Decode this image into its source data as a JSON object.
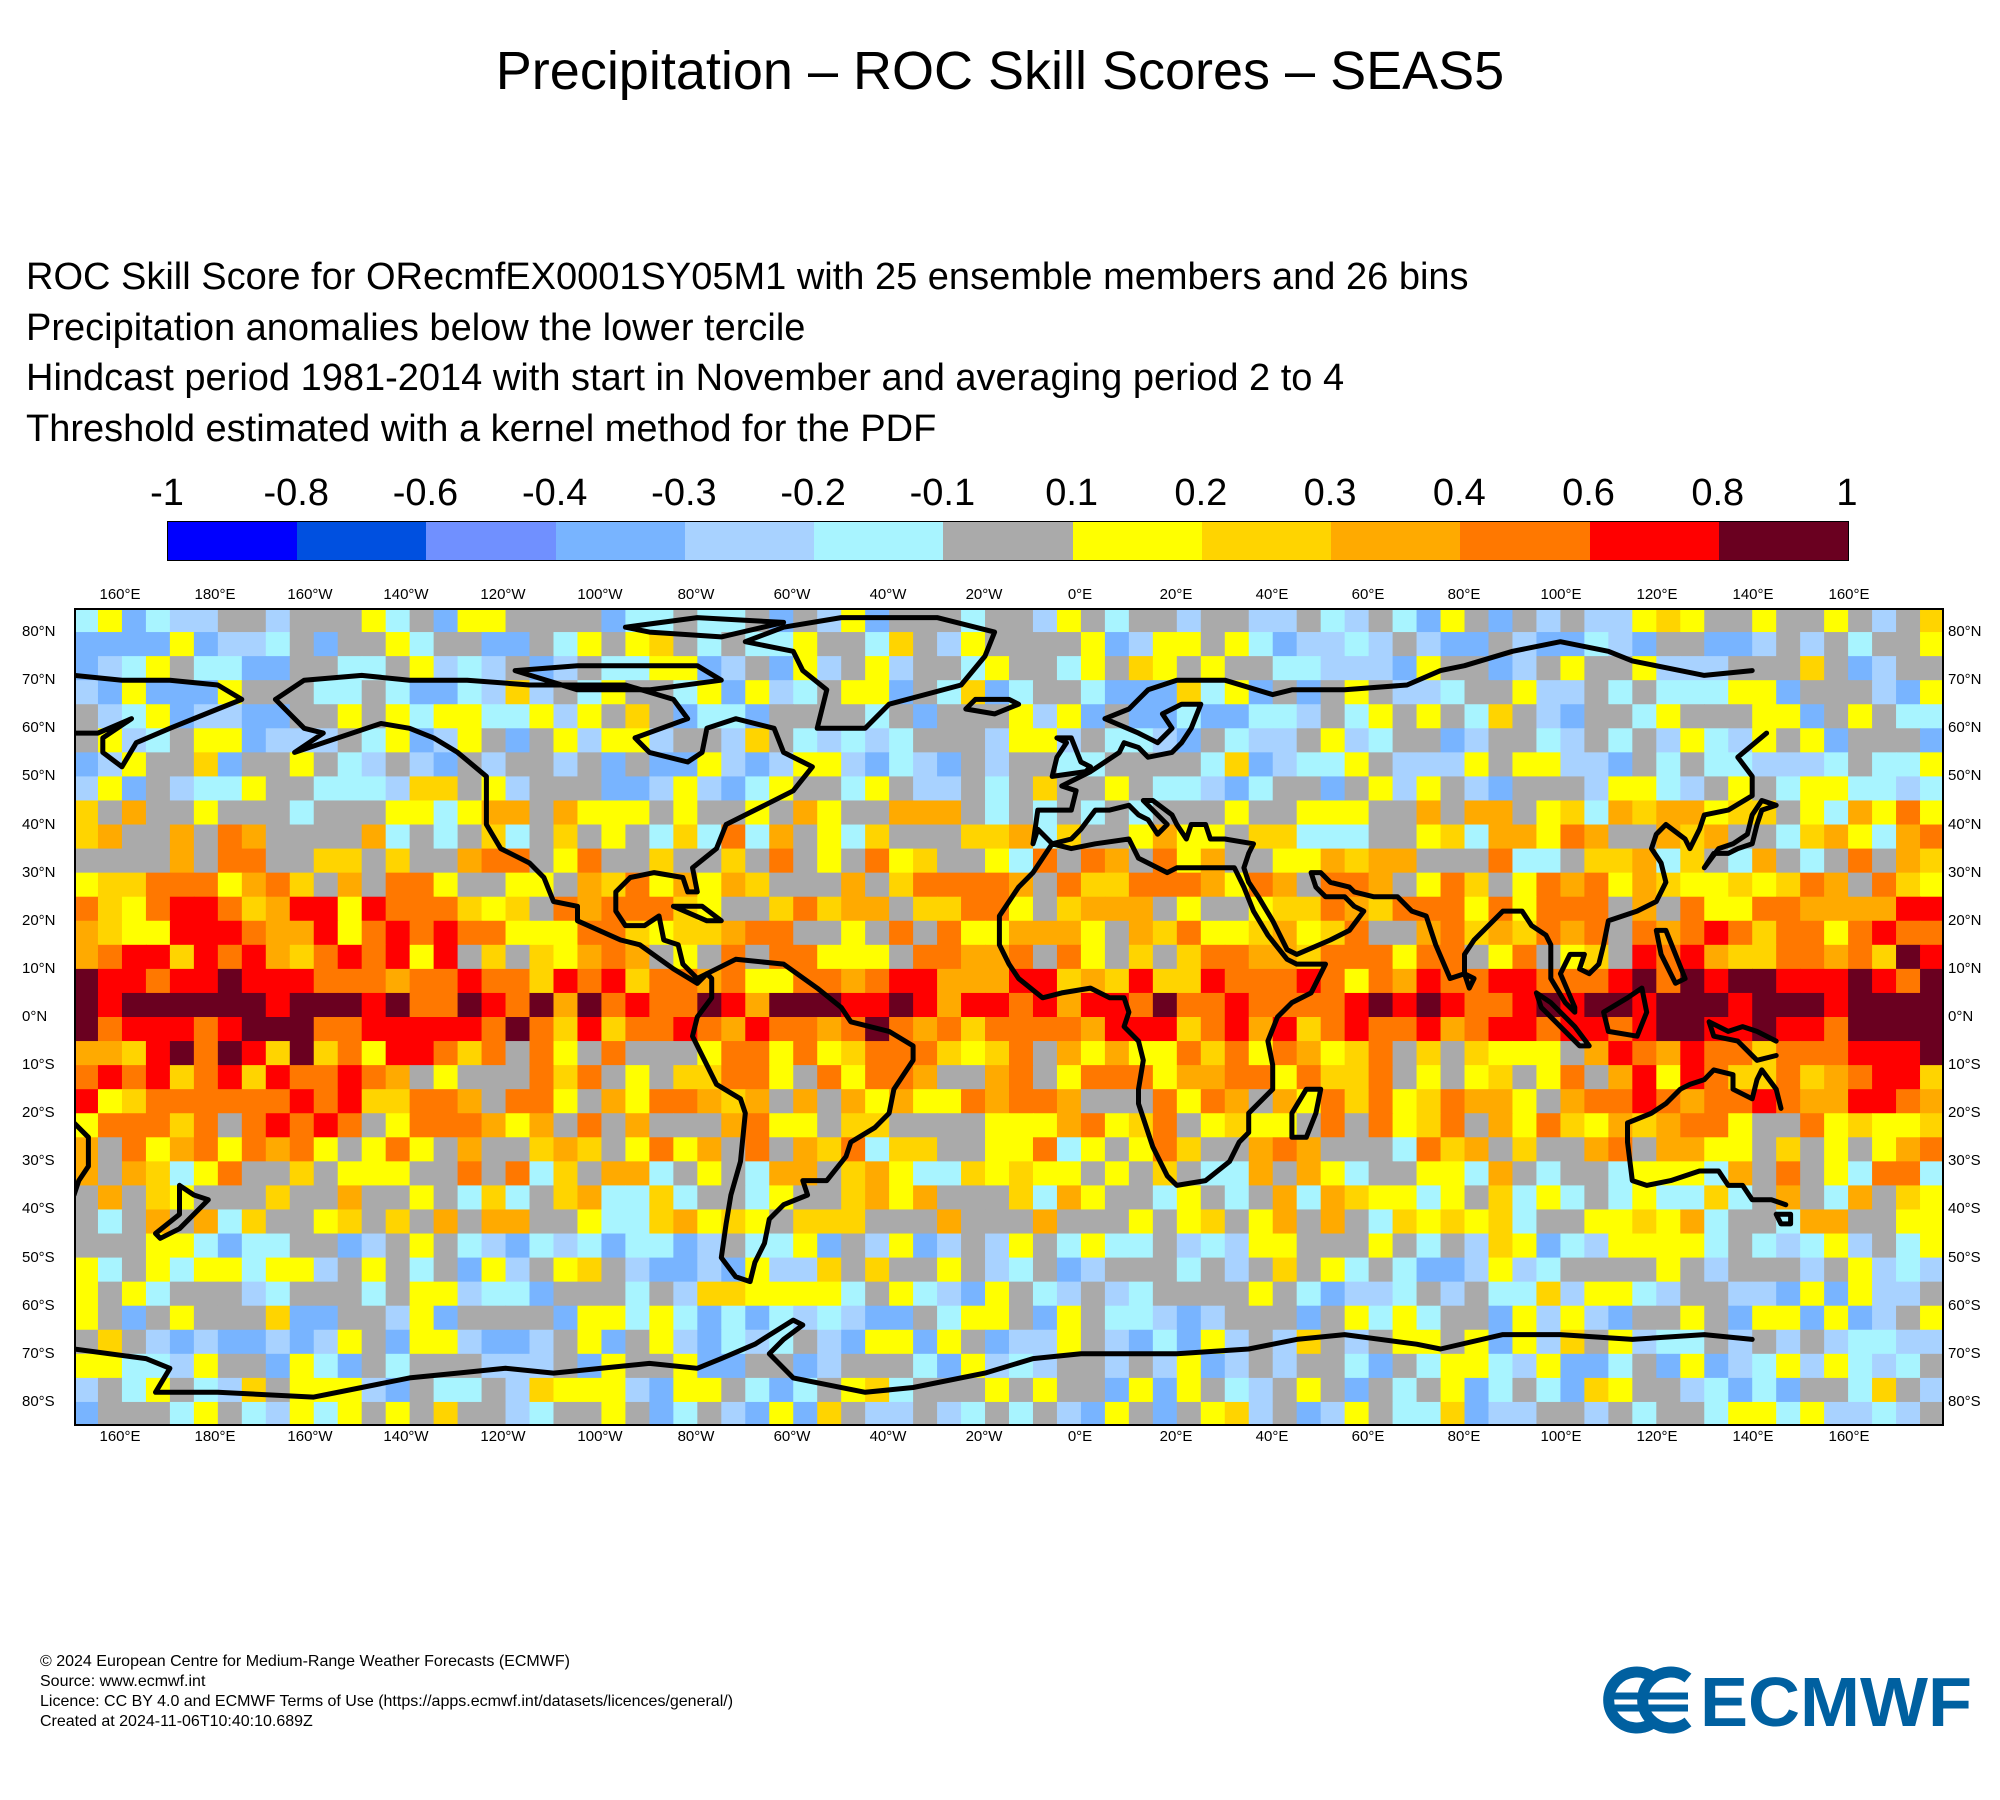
{
  "title": "Precipitation – ROC Skill Scores – SEAS5",
  "subtitle": {
    "line1": "ROC Skill Score for ORecmfEX0001SY05M1 with 25 ensemble members and 26 bins",
    "line2": "Precipitation anomalies below the lower tercile",
    "line3": "Hindcast period 1981-2014 with start in November and averaging period  2 to  4",
    "line4": "Threshold estimated with a kernel method for the PDF"
  },
  "legend": {
    "labels": [
      "-1",
      "-0.8",
      "-0.6",
      "-0.4",
      "-0.3",
      "-0.2",
      "-0.1",
      "0.1",
      "0.2",
      "0.3",
      "0.4",
      "0.6",
      "0.8",
      "1"
    ],
    "colors": [
      "#0000ff",
      "#0050e0",
      "#7090ff",
      "#78b4ff",
      "#a8d2ff",
      "#a8f4ff",
      "#aaaaaa",
      "#ffff00",
      "#ffd400",
      "#ffaa00",
      "#ff7800",
      "#ff0000",
      "#6a0020"
    ]
  },
  "axes": {
    "lon_labels": [
      "160°E",
      "180°E",
      "160°W",
      "140°W",
      "120°W",
      "100°W",
      "80°W",
      "60°W",
      "40°W",
      "20°W",
      "0°E",
      "20°E",
      "40°E",
      "60°E",
      "80°E",
      "100°E",
      "120°E",
      "140°E",
      "160°E"
    ],
    "lat_labels": [
      "80°N",
      "70°N",
      "60°N",
      "50°N",
      "40°N",
      "30°N",
      "20°N",
      "10°N",
      "0°N",
      "10°S",
      "20°S",
      "30°S",
      "40°S",
      "50°S",
      "60°S",
      "70°S",
      "80°S"
    ]
  },
  "map_extent": {
    "lon_min": 150,
    "lon_max": 540,
    "lat_min": -85,
    "lat_max": 85
  },
  "coastline_color": "#000000",
  "footer": {
    "line1": "© 2024 European Centre for Medium-Range Weather Forecasts (ECMWF)",
    "line2": "Source: www.ecmwf.int",
    "line3": "Licence: CC BY 4.0 and ECMWF Terms of Use (https://apps.ecmwf.int/datasets/licences/general/)",
    "line4": "Created at 2024-11-06T10:40:10.689Z"
  },
  "logo": {
    "text": "ECMWF",
    "color": "#0060a0"
  }
}
